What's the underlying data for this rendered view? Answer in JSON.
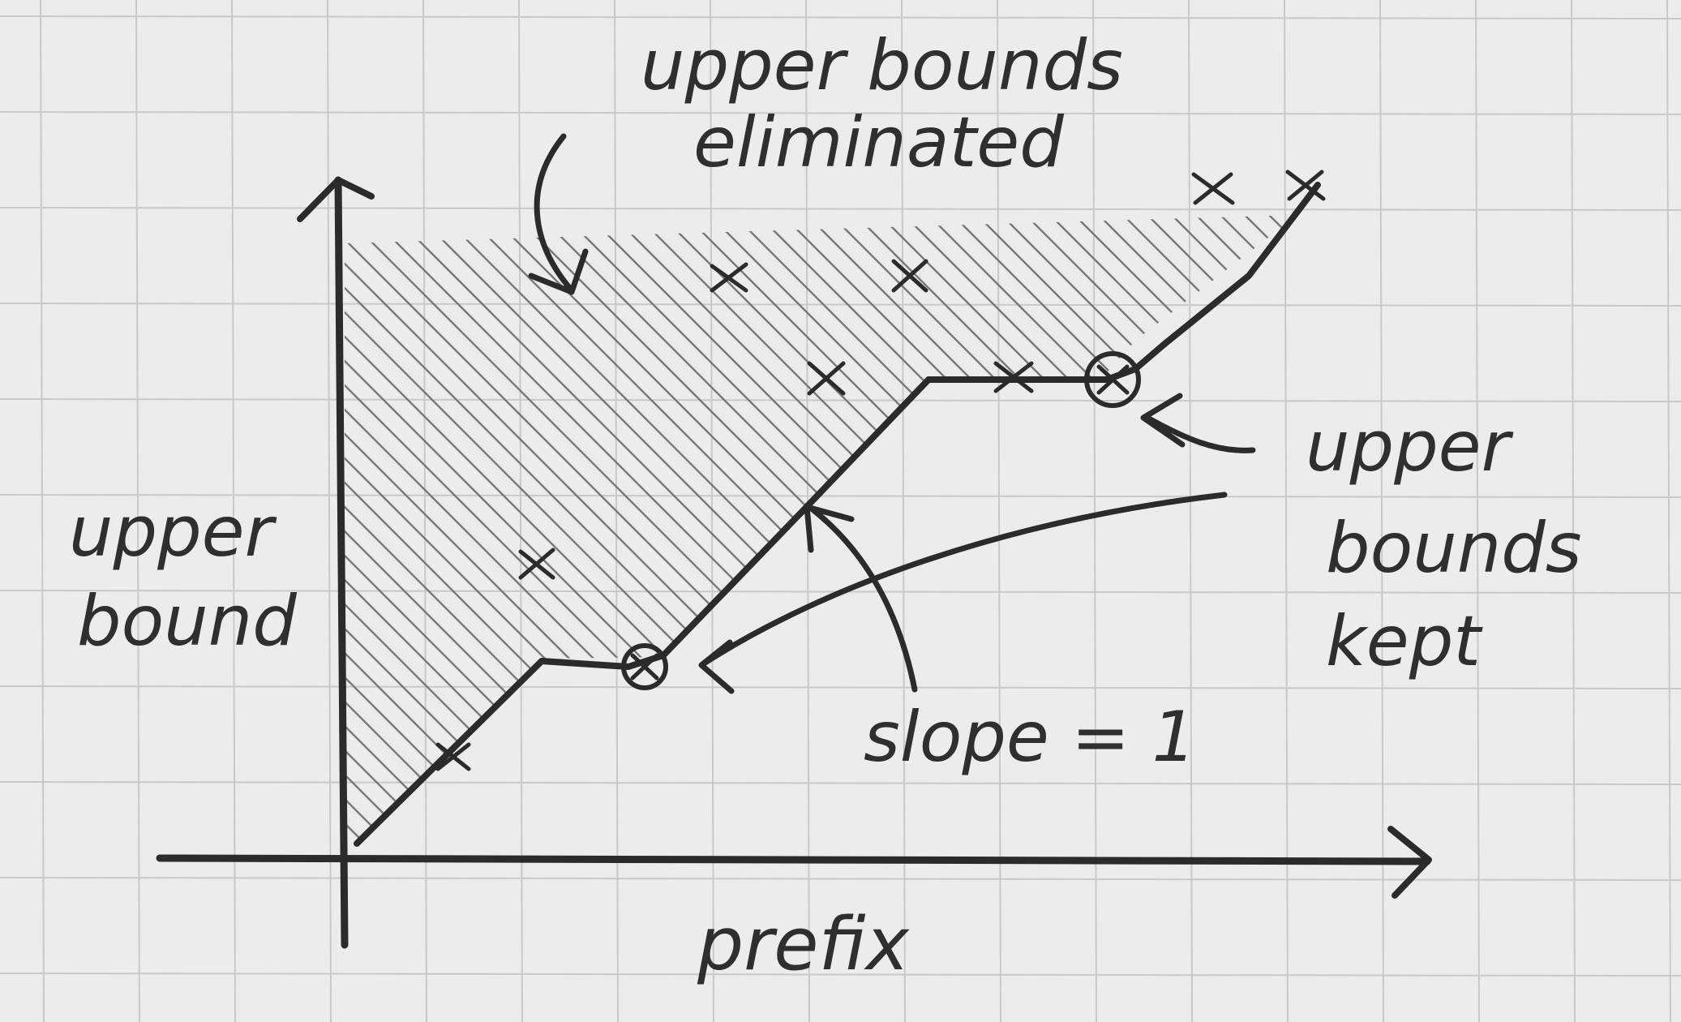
{
  "labels": {
    "y_axis": [
      "upper",
      "bound"
    ],
    "x_axis": "prefix",
    "eliminated": [
      "upper bounds",
      "eliminated"
    ],
    "kept": [
      "upper",
      "bounds",
      "kept"
    ],
    "slope": "slope = 1"
  },
  "colors": {
    "paper": "#ececea",
    "grid": "#c9cac8",
    "ink": "#2b2b2b",
    "hatch": "#7a7a7a"
  }
}
